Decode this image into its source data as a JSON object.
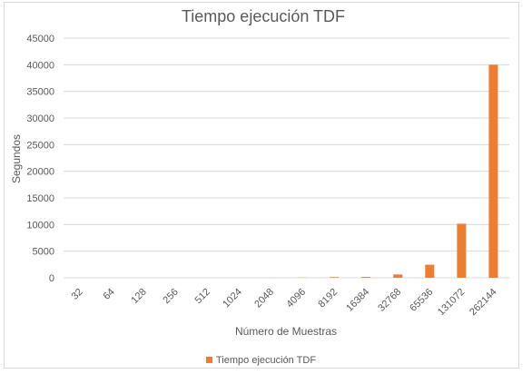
{
  "colors": {
    "bar": "#ed7d31",
    "grid": "#d9d9d9",
    "text": "#595959"
  },
  "chart_data": {
    "type": "bar",
    "title": "Tiempo ejecución TDF",
    "xlabel": "Número de Muestras",
    "ylabel": "Segundos",
    "categories": [
      "32",
      "64",
      "128",
      "256",
      "512",
      "1024",
      "2048",
      "4096",
      "8192",
      "16384",
      "32768",
      "65536",
      "131072",
      "262144"
    ],
    "series": [
      {
        "name": "Tiempo ejecución TDF",
        "values": [
          0,
          0,
          0,
          0,
          1,
          2,
          8,
          30,
          120,
          160,
          620,
          2450,
          10150,
          40000
        ]
      }
    ],
    "ylim": [
      0,
      45000
    ],
    "yticks": [
      "0",
      "5000",
      "10000",
      "15000",
      "20000",
      "25000",
      "30000",
      "35000",
      "40000",
      "45000"
    ],
    "grid": true,
    "legend": "bottom"
  }
}
